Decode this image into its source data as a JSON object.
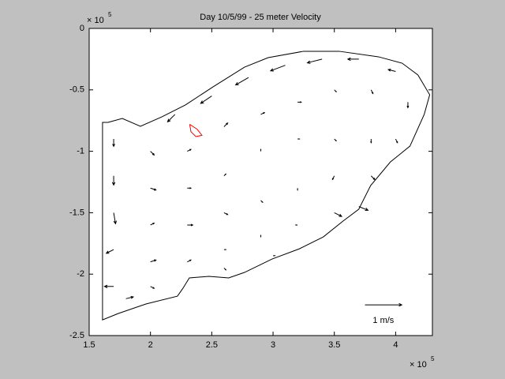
{
  "chart_data": {
    "type": "quiver",
    "title": "Day 10/5/99 - 25 meter Velocity",
    "xlim": [
      1.5,
      4.3
    ],
    "ylim": [
      -2.5,
      0
    ],
    "xticks": [
      1.5,
      2,
      2.5,
      3,
      3.5,
      4
    ],
    "yticks": [
      0,
      -0.5,
      -1,
      -1.5,
      -2,
      -2.5
    ],
    "x_multiplier": {
      "base": "× 10",
      "exponent": "5"
    },
    "y_multiplier": {
      "base": "× 10",
      "exponent": "5"
    },
    "color": "#000000",
    "outline": {
      "color": "#000000",
      "x": [
        1.654,
        1.77,
        1.918,
        2.092,
        2.285,
        2.51,
        2.767,
        2.96,
        3.249,
        3.539,
        3.86,
        4.053,
        4.182,
        4.278,
        4.233,
        4.117,
        3.957,
        3.796,
        3.699,
        3.571,
        3.41,
        3.217,
        2.992,
        2.767,
        2.638,
        2.477,
        2.317,
        2.265,
        2.22,
        1.963,
        1.738,
        1.609,
        1.609,
        1.654
      ],
      "y": [
        -0.765,
        -0.733,
        -0.797,
        -0.72,
        -0.623,
        -0.476,
        -0.315,
        -0.238,
        -0.186,
        -0.186,
        -0.231,
        -0.283,
        -0.379,
        -0.54,
        -0.7,
        -0.958,
        -1.087,
        -1.279,
        -1.472,
        -1.568,
        -1.697,
        -1.793,
        -1.877,
        -1.986,
        -2.031,
        -2.018,
        -2.031,
        -2.115,
        -2.179,
        -2.243,
        -2.32,
        -2.372,
        -0.765,
        -0.765
      ]
    },
    "contour": {
      "color": "#ff0000",
      "x": [
        2.32,
        2.38,
        2.42,
        2.37,
        2.33,
        2.32
      ],
      "y": [
        -0.78,
        -0.82,
        -0.87,
        -0.88,
        -0.84,
        -0.78
      ]
    },
    "quiver_scale": 0.3,
    "arrows": {
      "x": [
        3.4,
        3.1,
        2.8,
        2.5,
        2.2,
        3.7,
        4.0,
        1.7,
        1.7,
        1.7,
        1.7,
        1.7,
        1.8,
        2.0,
        2.3,
        2.6,
        2.9,
        3.2,
        3.5,
        3.8,
        4.1,
        2.0,
        2.3,
        2.6,
        2.9,
        3.2,
        3.5,
        3.8,
        4.0,
        2.0,
        2.3,
        2.6,
        2.9,
        3.2,
        3.5,
        3.8,
        2.0,
        2.3,
        2.6,
        2.9,
        3.2,
        3.5,
        3.7,
        2.0,
        2.6,
        3.0
      ],
      "y": [
        -0.25,
        -0.3,
        -0.4,
        -0.55,
        -0.7,
        -0.25,
        -0.35,
        -0.9,
        -1.2,
        -1.5,
        -1.8,
        -2.1,
        -2.2,
        -1.0,
        -1.0,
        -0.8,
        -0.7,
        -0.6,
        -0.5,
        -0.5,
        -0.6,
        -1.3,
        -1.3,
        -1.2,
        -1.0,
        -0.9,
        -0.9,
        -0.9,
        -0.9,
        -1.6,
        -1.6,
        -1.5,
        -1.4,
        -1.3,
        -1.2,
        -1.2,
        -1.9,
        -1.9,
        -1.8,
        -1.7,
        -1.6,
        -1.5,
        -1.45,
        -2.1,
        -1.95,
        -1.85
      ],
      "u": [
        -0.4,
        -0.4,
        -0.35,
        -0.3,
        -0.2,
        -0.3,
        -0.2,
        0,
        0,
        0.05,
        -0.2,
        -0.25,
        0.2,
        0.1,
        0.1,
        0.1,
        0.1,
        0.1,
        0.05,
        0.05,
        0,
        0.15,
        0.1,
        0.05,
        0,
        0.05,
        0.05,
        0,
        0.05,
        0.1,
        0.15,
        0.1,
        0.05,
        0,
        -0.05,
        0.1,
        0.15,
        0.1,
        0.05,
        0,
        -0.05,
        0.2,
        0.25,
        0.1,
        0.05,
        0.05
      ],
      "v": [
        -0.1,
        -0.15,
        -0.2,
        -0.2,
        -0.2,
        0,
        0.05,
        -0.2,
        -0.25,
        -0.3,
        -0.1,
        0,
        0.05,
        -0.1,
        0.05,
        0.1,
        0.05,
        0,
        -0.05,
        -0.1,
        -0.15,
        -0.05,
        0,
        0.05,
        0.05,
        0,
        -0.05,
        -0.1,
        -0.1,
        0.05,
        0,
        -0.05,
        -0.05,
        -0.05,
        -0.1,
        -0.1,
        0.05,
        0.05,
        0,
        0.05,
        0,
        -0.1,
        -0.1,
        -0.05,
        -0.05,
        0
      ]
    },
    "reference_arrow": {
      "x": 3.75,
      "y": -2.25,
      "u": 1,
      "label": "1 m/s"
    }
  }
}
